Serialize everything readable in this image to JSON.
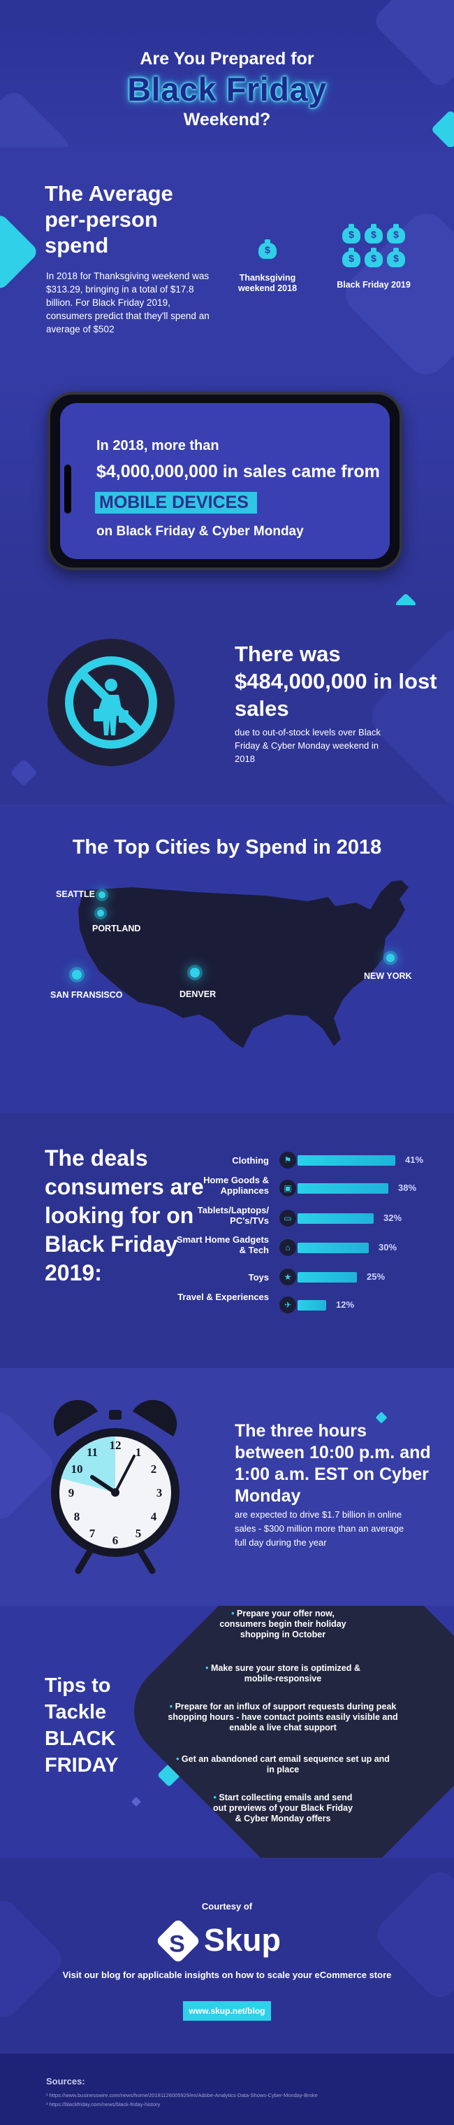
{
  "header": {
    "pre": "Are You Prepared for",
    "main": "Black Friday",
    "post": "Weekend?"
  },
  "average": {
    "title": "The Average per-person spend",
    "body": "In 2018 for Thanksgiving weekend was $313.29, bringing in a total of $17.8 billion. For Black Friday 2019, consumers predict that they'll spend an average of $502",
    "thanksgiving_label": "Thanksgiving weekend 2018",
    "blackfriday_label": "Black Friday 2019",
    "bag_symbol": "$",
    "thanksgiving_bags": 1,
    "blackfriday_bags": 6,
    "accent": "#2fd0e8"
  },
  "mobile": {
    "line1": "In 2018, more than",
    "line2": "$4,000,000,000 in sales came from",
    "highlight": "MOBILE DEVICES",
    "line3": "on Black Friday & Cyber Monday"
  },
  "lost": {
    "headline": "There was $484,000,000 in lost sales",
    "body": "due to out-of-stock levels over Black Friday & Cyber Monday weekend in 2018",
    "icon": "no-shopping-icon"
  },
  "cities": {
    "title": "The Top Cities by Spend in 2018",
    "list": [
      "SEATTLE",
      "PORTLAND",
      "SAN FRANSISCO",
      "DENVER",
      "NEW YORK"
    ]
  },
  "deals": {
    "title": "The deals consumers are looking for on Black Friday 2019:",
    "items": [
      {
        "label": "Clothing",
        "percent": "41%",
        "value": 41,
        "icon": "shirt-icon"
      },
      {
        "label": "Home Goods & Appliances",
        "percent": "38%",
        "value": 38,
        "icon": "appliance-icon"
      },
      {
        "label": "Tablets/Laptops/ PC's/TVs",
        "percent": "32%",
        "value": 32,
        "icon": "laptop-icon"
      },
      {
        "label": "Smart Home Gadgets & Tech",
        "percent": "30%",
        "value": 30,
        "icon": "smart-home-icon"
      },
      {
        "label": "Toys",
        "percent": "25%",
        "value": 25,
        "icon": "toy-icon"
      },
      {
        "label": "Travel & Experiences",
        "percent": "12%",
        "value": 12,
        "icon": "plane-icon"
      }
    ]
  },
  "clock": {
    "headline": "The three hours between 10:00 p.m. and 1:00 a.m. EST on Cyber Monday",
    "body": "are expected to drive $1.7 billion in online sales - $300 million more than an average full day during the year"
  },
  "tips": {
    "title": "Tips to Tackle BLACK FRIDAY",
    "items": [
      "Prepare your offer now, consumers begin their holiday shopping in October",
      "Make sure your store is optimized & mobile-responsive",
      "Prepare for an influx of support requests during peak shopping hours - have contact points easily visible and enable a live chat support",
      "Get an abandoned cart email sequence set up and in place",
      "Start collecting emails and send out previews of your Black Friday & Cyber Monday offers"
    ]
  },
  "courtesy": {
    "label": "Courtesy of",
    "brand": "Skup",
    "logo_letter": "S",
    "body": "Visit our blog for applicable insights on how to scale your eCommerce store",
    "button": "www.skup.net/blog"
  },
  "sources": {
    "title": "Sources:",
    "items": [
      "¹ https://www.businesswire.com/news/home/20181126005929/en/Adobe-Analytics-Data-Shows-Cyber-Monday-Broke",
      "² https://blackfriday.com/news/black-friday-history"
    ]
  }
}
